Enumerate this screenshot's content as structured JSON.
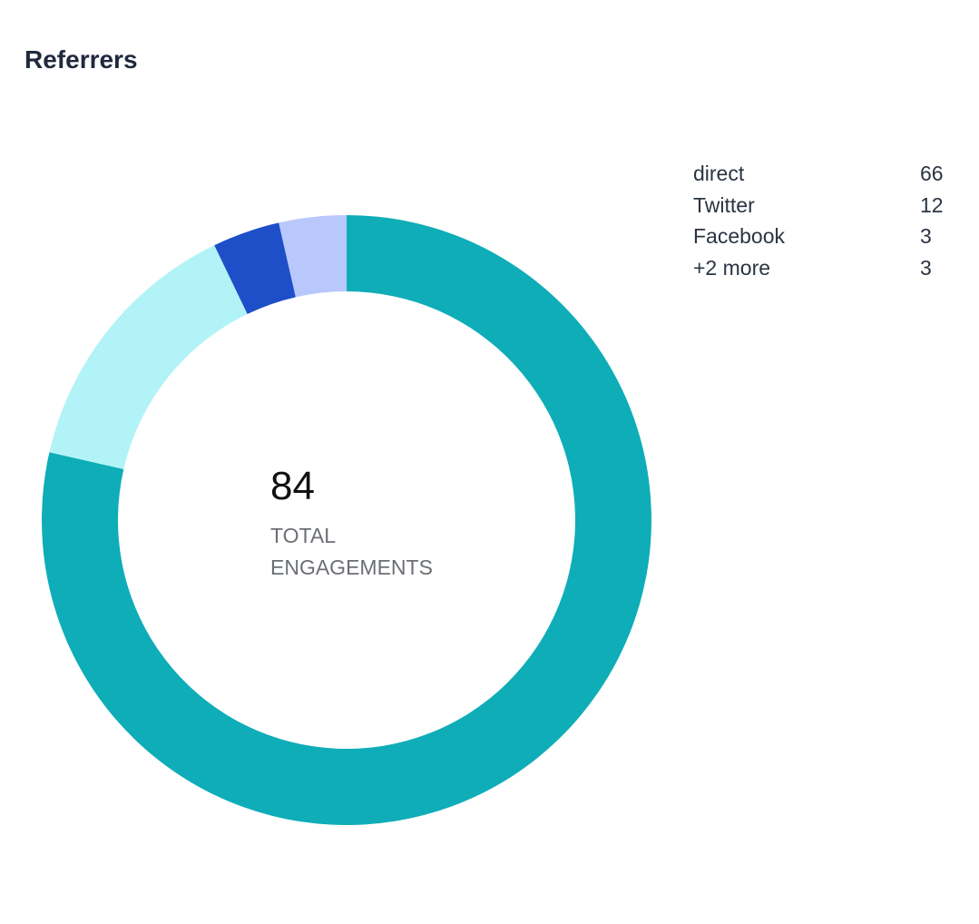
{
  "title": "Referrers",
  "center": {
    "total": "84",
    "label": "TOTAL ENGAGEMENTS"
  },
  "legend": [
    {
      "name": "direct",
      "value": "66"
    },
    {
      "name": "Twitter",
      "value": "12"
    },
    {
      "name": "Facebook",
      "value": "3"
    },
    {
      "name": "+2 more",
      "value": "3"
    }
  ],
  "colors": {
    "direct": "#0eadb8",
    "Twitter": "#b2f3f7",
    "Facebook": "#1e4fc8",
    "more": "#b8c8fc",
    "title": "#1f2a3d",
    "legend_text": "#2b3442"
  },
  "chart_data": {
    "type": "pie",
    "categories": [
      "direct",
      "Twitter",
      "Facebook",
      "+2 more"
    ],
    "values": [
      66,
      12,
      3,
      3
    ],
    "total": 84,
    "title": "Referrers",
    "legend_placement": "right",
    "donut": true
  }
}
